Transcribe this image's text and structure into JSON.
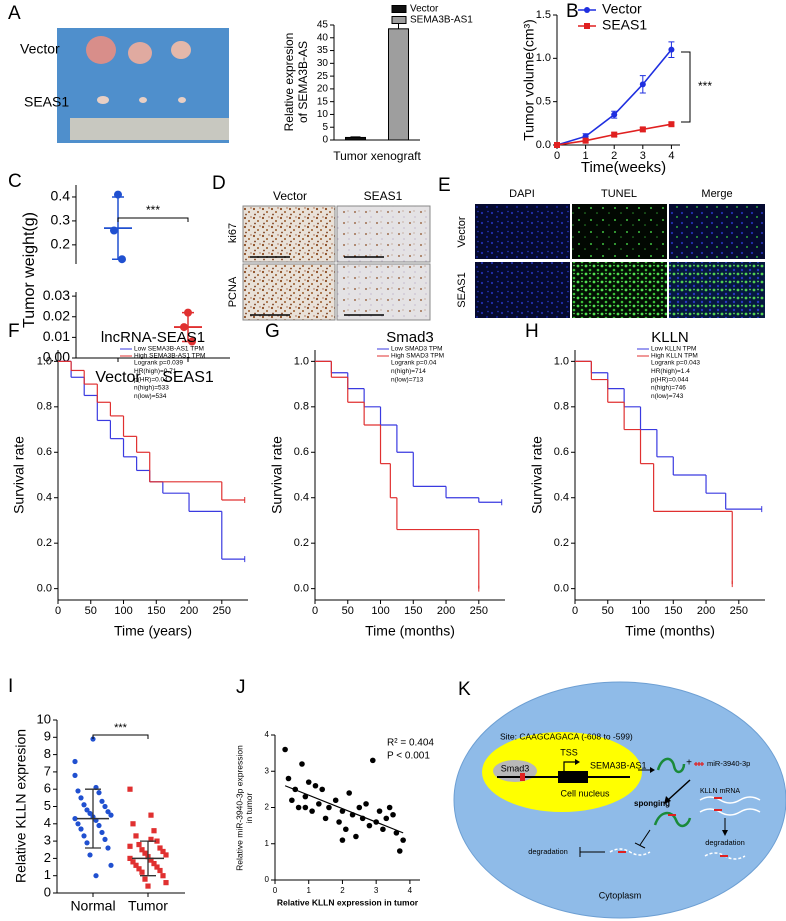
{
  "figure": {
    "A": {
      "label": "A",
      "rows": [
        "Vector",
        "SEAS1"
      ]
    },
    "D": {
      "label": "D",
      "columns": [
        "Vector",
        "SEAS1"
      ],
      "rows": [
        "ki67",
        "PCNA"
      ]
    },
    "E": {
      "label": "E",
      "columns": [
        "DAPI",
        "TUNEL",
        "Merge"
      ],
      "rows": [
        "Vector",
        "SEAS1"
      ]
    },
    "K": {
      "label": "K",
      "site": "Site: CAAGCAGACA (-608  to -599)",
      "smad3": "Smad3",
      "tss": "TSS",
      "gene": "SEMA3B-AS1",
      "nucleus": "Cell nucleus",
      "plus": "+",
      "mirna": "miR-3940-3p",
      "sponging": "sponging",
      "mrna": "KLLN mRNA",
      "degradation_left": "degradation",
      "degradation_right": "degradation",
      "cytoplasm": "Cytoplasm"
    }
  },
  "chart_data": [
    {
      "type": "bar",
      "ylabel": [
        "Relative expresion",
        "of SEMA3B-AS"
      ],
      "xlabel": "Tumor xenograft",
      "series": [
        {
          "name": "Vector",
          "color": "#111111",
          "values": [
            1.0
          ],
          "errors": [
            0.2
          ]
        },
        {
          "name": "SEMA3B-AS1",
          "color": "#9e9e9e",
          "values": [
            43.5
          ],
          "errors": [
            4
          ]
        }
      ],
      "ylim": [
        0,
        45
      ],
      "yticks": [
        0,
        5,
        10,
        15,
        20,
        25,
        30,
        35,
        40,
        45
      ]
    },
    {
      "type": "line",
      "panel_label": "B",
      "xlabel": "Time(weeks)",
      "ylabel": "Tumor volume(cm³)",
      "x": [
        0,
        1,
        2,
        3,
        4
      ],
      "series": [
        {
          "name": "Vector",
          "color": "#1f2fe0",
          "marker": "circle",
          "values": [
            0,
            0.1,
            0.35,
            0.7,
            1.1
          ],
          "errors": [
            0,
            0.03,
            0.04,
            0.1,
            0.09
          ]
        },
        {
          "name": "SEAS1",
          "color": "#e02020",
          "marker": "square",
          "values": [
            0,
            0.05,
            0.12,
            0.18,
            0.24
          ],
          "errors": [
            0,
            0.02,
            0.02,
            0.02,
            0.02
          ]
        }
      ],
      "xlim": [
        0,
        4.3
      ],
      "xticks": [
        0,
        1,
        2,
        3,
        4
      ],
      "ylim": [
        0,
        1.5
      ],
      "yticks": [
        {
          "value": 0,
          "label": "0.0"
        },
        0.5,
        {
          "value": 1,
          "label": "1.0"
        },
        1.5
      ],
      "annotation": "***"
    },
    {
      "type": "dotplot_broken",
      "panel_label": "C",
      "ylabel": "Tumor weight(g)",
      "categories": [
        "Vector",
        "SEAS1"
      ],
      "groups": [
        {
          "color": "#2050d0",
          "marker": "circle",
          "points": [
            0.41,
            0.26,
            0.14
          ],
          "mean": 0.27,
          "sd": 0.13
        },
        {
          "color": "#e03030",
          "marker": "circle",
          "points": [
            0.022,
            0.015,
            0.008
          ],
          "mean": 0.015,
          "sd": 0.007
        }
      ],
      "ylim": [
        0.12,
        0.45
      ],
      "yticks": [
        0.2,
        0.3,
        0.4
      ],
      "ylim_lower": [
        0,
        0.032
      ],
      "yticks_lower": [
        {
          "value": 0,
          "label": "0.00"
        },
        0.01,
        0.02,
        0.03
      ],
      "annotation": "***"
    },
    {
      "type": "km",
      "panel_label": "F",
      "title": "lncRNA-SEAS1",
      "xlabel": "Time (years)",
      "ylabel": "Survival rate",
      "series": [
        {
          "name": "Low SEMA3B-AS1 TPM",
          "color": "#3a3ae0",
          "x": [
            0,
            20,
            40,
            60,
            80,
            100,
            120,
            140,
            160,
            200,
            250,
            285
          ],
          "values": [
            1,
            0.93,
            0.85,
            0.74,
            0.66,
            0.58,
            0.52,
            0.47,
            0.42,
            0.34,
            0.13,
            0.13
          ]
        },
        {
          "name": "High SEMA3B-AS1 TPM",
          "color": "#e03030",
          "x": [
            0,
            20,
            40,
            60,
            80,
            100,
            120,
            140,
            160,
            200,
            250,
            285
          ],
          "values": [
            1,
            0.96,
            0.9,
            0.82,
            0.76,
            0.67,
            0.6,
            0.47,
            0.47,
            0.47,
            0.39,
            0.39
          ]
        }
      ],
      "stats": [
        "Logrank p=0.039",
        "HR(high)=0.71",
        "p(HR)=0.04",
        "n(high)=533",
        "n(low)=534"
      ],
      "xlim": [
        0,
        290
      ],
      "xticks": [
        0,
        50,
        100,
        150,
        200,
        250
      ],
      "ylim": [
        -0.05,
        1.05
      ],
      "yticks": [
        {
          "value": 0,
          "label": "0.0"
        },
        0.2,
        0.4,
        0.6,
        0.8,
        {
          "value": 1,
          "label": "1.0"
        }
      ]
    },
    {
      "type": "km",
      "panel_label": "G",
      "title": "Smad3",
      "xlabel": "Time (months)",
      "ylabel": "Survival rate",
      "series": [
        {
          "name": "Low SMAD3 TPM",
          "color": "#3a3ae0",
          "x": [
            0,
            25,
            50,
            75,
            100,
            125,
            150,
            200,
            250,
            285
          ],
          "values": [
            1,
            0.95,
            0.88,
            0.8,
            0.72,
            0.6,
            0.45,
            0.4,
            0.38,
            0.38
          ]
        },
        {
          "name": "High SMAD3 TPM",
          "color": "#e03030",
          "x": [
            0,
            25,
            50,
            75,
            100,
            115,
            125,
            250
          ],
          "values": [
            1,
            0.93,
            0.82,
            0.72,
            0.55,
            0.4,
            0.26,
            0
          ]
        }
      ],
      "stats": [
        "Logrank p=0.04",
        "n(high)=714",
        "n(low)=713"
      ],
      "xlim": [
        0,
        290
      ],
      "xticks": [
        0,
        50,
        100,
        150,
        200,
        250
      ],
      "ylim": [
        -0.05,
        1.05
      ],
      "yticks": [
        {
          "value": 0,
          "label": "0.0"
        },
        0.2,
        0.4,
        0.6,
        0.8,
        {
          "value": 1,
          "label": "1.0"
        }
      ]
    },
    {
      "type": "km",
      "panel_label": "H",
      "title": "KLLN",
      "xlabel": "Time (months)",
      "ylabel": "Survival rate",
      "series": [
        {
          "name": "Low KLLN TPM",
          "color": "#3a3ae0",
          "x": [
            0,
            25,
            50,
            75,
            100,
            125,
            150,
            200,
            230,
            285
          ],
          "values": [
            1,
            0.95,
            0.88,
            0.8,
            0.7,
            0.58,
            0.5,
            0.42,
            0.35,
            0.35
          ]
        },
        {
          "name": "High KLLN TPM",
          "color": "#e03030",
          "x": [
            0,
            25,
            50,
            75,
            100,
            120,
            240
          ],
          "values": [
            1,
            0.92,
            0.82,
            0.7,
            0.55,
            0.34,
            0.02
          ]
        }
      ],
      "stats": [
        "Logrank p=0.043",
        "HR(high)=1.4",
        "p(HR)=0.044",
        "n(high)=746",
        "n(low)=743"
      ],
      "xlim": [
        0,
        290
      ],
      "xticks": [
        0,
        50,
        100,
        150,
        200,
        250
      ],
      "ylim": [
        -0.05,
        1.05
      ],
      "yticks": [
        {
          "value": 0,
          "label": "0.0"
        },
        0.2,
        0.4,
        0.6,
        0.8,
        {
          "value": 1,
          "label": "1.0"
        }
      ]
    },
    {
      "type": "dotplot",
      "panel_label": "I",
      "ylabel": "Relative KLLN expresion",
      "categories": [
        "Normal",
        "Tumor"
      ],
      "groups": [
        {
          "color": "#2050d0",
          "marker": "circle",
          "points": [
            6.8,
            6.1,
            5.9,
            5.8,
            5.5,
            5.3,
            5.1,
            5.0,
            4.8,
            4.7,
            4.6,
            4.5,
            4.4,
            4.3,
            4.2,
            4.0,
            3.9,
            3.7,
            3.5,
            3.3,
            3.1,
            2.9,
            2.6,
            2.2,
            1.6,
            8.9,
            7.6,
            1.0
          ],
          "mean": 4.3,
          "sd": 1.7
        },
        {
          "color": "#e03030",
          "marker": "square",
          "points": [
            6.0,
            4.5,
            4.0,
            3.6,
            3.3,
            3.0,
            2.8,
            2.6,
            2.5,
            2.4,
            2.3,
            2.2,
            2.1,
            2.0,
            1.9,
            1.8,
            1.7,
            1.6,
            1.5,
            1.4,
            1.3,
            1.2,
            1.0,
            0.8,
            0.6,
            0.4,
            2.7,
            3.1
          ],
          "mean": 2.0,
          "sd": 1.0
        }
      ],
      "ylim": [
        0,
        10
      ],
      "yticks": [
        0,
        1,
        2,
        3,
        4,
        5,
        6,
        7,
        8,
        9,
        10
      ],
      "annotation": "***"
    },
    {
      "type": "scatter",
      "panel_label": "J",
      "xlabel": "Relative KLLN expression in tumor",
      "ylabel": [
        "Relative miR-3940-3p expression",
        "in tumor"
      ],
      "x": [
        0.3,
        0.4,
        0.5,
        0.6,
        0.7,
        0.8,
        0.9,
        1.0,
        1.1,
        1.2,
        1.3,
        1.5,
        1.6,
        1.8,
        1.9,
        2.0,
        2.1,
        2.2,
        2.3,
        2.4,
        2.5,
        2.6,
        2.7,
        2.8,
        2.9,
        3.0,
        3.1,
        3.2,
        3.3,
        3.4,
        3.5,
        3.6,
        3.7,
        3.8,
        1.4,
        2.0,
        0.9
      ],
      "values": [
        3.6,
        2.8,
        2.2,
        2.5,
        2.0,
        3.2,
        2.3,
        2.7,
        1.9,
        2.6,
        2.1,
        1.7,
        2.0,
        2.2,
        1.6,
        1.9,
        1.4,
        2.4,
        1.8,
        1.2,
        2.0,
        1.7,
        2.1,
        1.5,
        3.3,
        1.6,
        1.9,
        1.4,
        1.7,
        2.0,
        1.8,
        1.3,
        0.8,
        1.1,
        2.5,
        1.1,
        2.0
      ],
      "color": "#000000",
      "trend": {
        "x": [
          0.3,
          3.8
        ],
        "values": [
          2.6,
          1.3
        ]
      },
      "xlim": [
        0,
        4.3
      ],
      "xticks": [
        0,
        1,
        2,
        3,
        4
      ],
      "ylim": [
        0,
        4
      ],
      "yticks": [
        0,
        1,
        2,
        3,
        4
      ],
      "annotation": [
        "R² = 0.404",
        "P < 0.001"
      ]
    }
  ]
}
